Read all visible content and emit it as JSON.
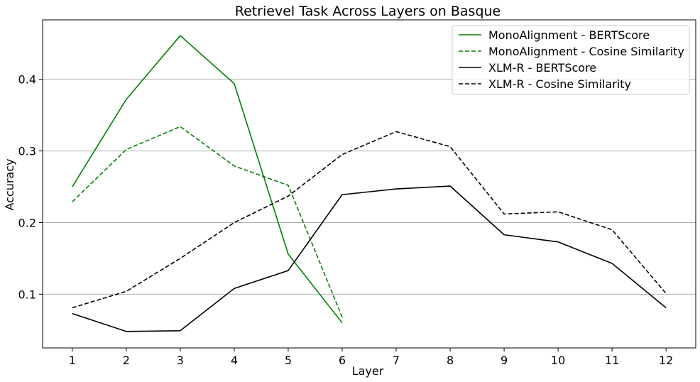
{
  "chart_data": {
    "type": "line",
    "title": "Retrievel Task Across Layers on Basque",
    "xlabel": "Layer",
    "ylabel": "Accuracy",
    "x": [
      1,
      2,
      3,
      4,
      5,
      6,
      7,
      8,
      9,
      10,
      11,
      12
    ],
    "xlim": [
      0.45,
      12.55
    ],
    "ylim": [
      0.025,
      0.483
    ],
    "yticks": [
      0.1,
      0.2,
      0.3,
      0.4
    ],
    "ytick_labels": [
      "0.1",
      "0.2",
      "0.3",
      "0.4"
    ],
    "xtick_labels": [
      "1",
      "2",
      "3",
      "4",
      "5",
      "6",
      "7",
      "8",
      "9",
      "10",
      "11",
      "12"
    ],
    "grid": "horizontal",
    "legend_position": "top-right",
    "series": [
      {
        "name": "MonoAlignment - BERTScore",
        "color": "#008000",
        "style": "solid",
        "x": [
          1,
          2,
          3,
          4,
          5,
          6
        ],
        "values": [
          0.25,
          0.372,
          0.461,
          0.394,
          0.156,
          0.06
        ]
      },
      {
        "name": "MonoAlignment - Cosine Similarity",
        "color": "#008000",
        "style": "dashed",
        "x": [
          1,
          2,
          3,
          4,
          5,
          6
        ],
        "values": [
          0.229,
          0.302,
          0.334,
          0.279,
          0.252,
          0.068
        ]
      },
      {
        "name": "XLM-R - BERTScore",
        "color": "#000000",
        "style": "solid",
        "x": [
          1,
          2,
          3,
          4,
          5,
          6,
          7,
          8,
          9,
          10,
          11,
          12
        ],
        "values": [
          0.073,
          0.048,
          0.049,
          0.108,
          0.133,
          0.239,
          0.247,
          0.251,
          0.183,
          0.173,
          0.143,
          0.081
        ]
      },
      {
        "name": "XLM-R - Cosine Similarity",
        "color": "#000000",
        "style": "dashed",
        "x": [
          1,
          2,
          3,
          4,
          5,
          6,
          7,
          8,
          9,
          10,
          11,
          12
        ],
        "values": [
          0.081,
          0.104,
          0.15,
          0.2,
          0.237,
          0.295,
          0.327,
          0.306,
          0.212,
          0.215,
          0.19,
          0.101
        ]
      }
    ]
  }
}
